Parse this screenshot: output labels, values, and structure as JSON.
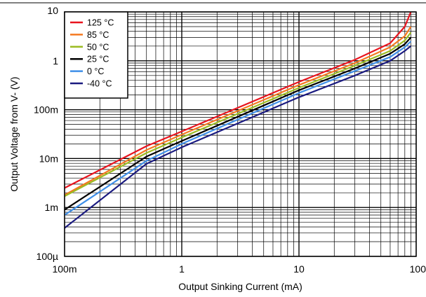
{
  "chart_data": {
    "type": "line",
    "title": "",
    "xlabel": "Output Sinking Current (mA)",
    "ylabel": "Output Voltage from V- (V)",
    "xscale": "log",
    "yscale": "log",
    "xlim": [
      0.1,
      100
    ],
    "ylim": [
      0.0001,
      10
    ],
    "grid": true,
    "legend_position": "top-left",
    "x_ticks": [
      {
        "value": 0.1,
        "label": "100m"
      },
      {
        "value": 1,
        "label": "1"
      },
      {
        "value": 10,
        "label": "10"
      },
      {
        "value": 100,
        "label": "100"
      }
    ],
    "y_ticks": [
      {
        "value": 10,
        "label": "10"
      },
      {
        "value": 1,
        "label": "1"
      },
      {
        "value": 0.1,
        "label": "100m"
      },
      {
        "value": 0.01,
        "label": "10m"
      },
      {
        "value": 0.001,
        "label": "1m"
      },
      {
        "value": 0.0001,
        "label": "100µ"
      }
    ],
    "series": [
      {
        "name": "125 °C",
        "color": "#e8141e",
        "points": [
          [
            0.1,
            0.0025
          ],
          [
            0.5,
            0.018
          ],
          [
            1,
            0.036
          ],
          [
            10,
            0.37
          ],
          [
            30,
            1.05
          ],
          [
            60,
            2.3
          ],
          [
            80,
            5.0
          ],
          [
            90,
            10
          ]
        ]
      },
      {
        "name": "85 °C",
        "color": "#f47920",
        "points": [
          [
            0.1,
            0.0018
          ],
          [
            0.5,
            0.015
          ],
          [
            1,
            0.031
          ],
          [
            10,
            0.32
          ],
          [
            30,
            0.9
          ],
          [
            60,
            1.9
          ],
          [
            80,
            3.2
          ],
          [
            90,
            5.0
          ]
        ]
      },
      {
        "name": "50 °C",
        "color": "#9bbb22",
        "points": [
          [
            0.1,
            0.0017
          ],
          [
            0.5,
            0.013
          ],
          [
            1,
            0.027
          ],
          [
            10,
            0.28
          ],
          [
            30,
            0.8
          ],
          [
            60,
            1.6
          ],
          [
            80,
            2.6
          ],
          [
            90,
            3.8
          ]
        ]
      },
      {
        "name": "25 °C",
        "color": "#000000",
        "points": [
          [
            0.1,
            0.0009
          ],
          [
            0.5,
            0.011
          ],
          [
            1,
            0.023
          ],
          [
            10,
            0.25
          ],
          [
            30,
            0.7
          ],
          [
            60,
            1.4
          ],
          [
            80,
            2.2
          ],
          [
            90,
            3.0
          ]
        ]
      },
      {
        "name": "0 °C",
        "color": "#3f8fe8",
        "points": [
          [
            0.1,
            0.0007
          ],
          [
            0.5,
            0.009
          ],
          [
            1,
            0.02
          ],
          [
            10,
            0.22
          ],
          [
            30,
            0.62
          ],
          [
            60,
            1.2
          ],
          [
            80,
            1.9
          ],
          [
            90,
            2.5
          ]
        ]
      },
      {
        "name": "-40 °C",
        "color": "#1a1a80",
        "points": [
          [
            0.1,
            0.00038
          ],
          [
            0.5,
            0.0078
          ],
          [
            1,
            0.017
          ],
          [
            10,
            0.18
          ],
          [
            30,
            0.5
          ],
          [
            60,
            1.0
          ],
          [
            80,
            1.6
          ],
          [
            90,
            2.0
          ]
        ]
      }
    ]
  }
}
